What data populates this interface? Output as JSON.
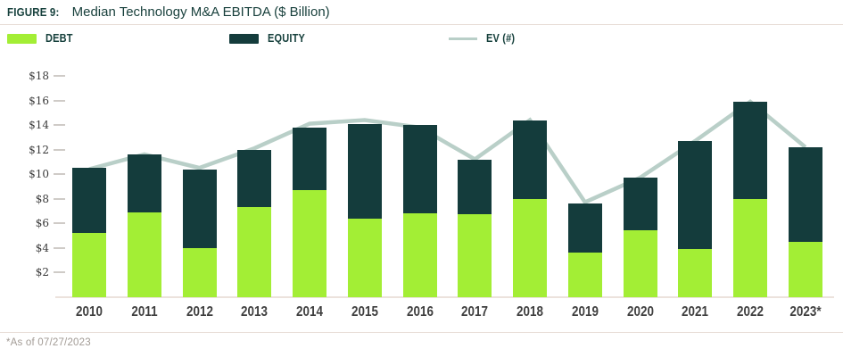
{
  "figure": {
    "label": "FIGURE 9:",
    "title": "Median Technology M&A EBITDA ($ Billion)",
    "footnote": "*As of 07/27/2023"
  },
  "legend": [
    {
      "label": "DEBT",
      "swatch": "box",
      "color": "#a3ee35"
    },
    {
      "label": "EQUITY",
      "swatch": "box",
      "color": "#143c3c"
    },
    {
      "label": "EV (#)",
      "swatch": "line",
      "color": "#b9cfc8"
    }
  ],
  "colors": {
    "debt": "#a3ee35",
    "equity": "#143c3c",
    "ev_line": "#b9cfc8",
    "axis_line": "#ece2dc",
    "tick_dash": "#cfcbc7"
  },
  "chart_data": {
    "type": "bar",
    "subtype": "stacked-bars-with-line-overlay",
    "title": "Median Technology M&A EBITDA ($ Billion)",
    "xlabel": "",
    "ylabel": "$ Billion",
    "ylim": [
      0,
      19
    ],
    "grid": false,
    "legend_position": "top",
    "categories": [
      "2010",
      "2011",
      "2012",
      "2013",
      "2014",
      "2015",
      "2016",
      "2017",
      "2018",
      "2019",
      "2020",
      "2021",
      "2022",
      "2023*"
    ],
    "series": [
      {
        "name": "DEBT",
        "type": "bar-stack",
        "color": "#a3ee35",
        "values": [
          5.2,
          6.9,
          4.0,
          7.3,
          8.7,
          6.4,
          6.8,
          6.7,
          8.0,
          3.6,
          5.4,
          3.9,
          8.0,
          4.5
        ]
      },
      {
        "name": "EQUITY",
        "type": "bar-stack",
        "color": "#143c3c",
        "values": [
          5.3,
          4.7,
          6.4,
          4.7,
          5.1,
          7.7,
          7.2,
          4.5,
          6.4,
          4.0,
          4.3,
          8.8,
          7.9,
          7.7
        ]
      },
      {
        "name": "EV (#)",
        "type": "line",
        "color": "#b9cfc8",
        "values": [
          10.4,
          11.6,
          10.5,
          12.1,
          14.1,
          14.4,
          13.8,
          11.2,
          14.4,
          7.7,
          9.7,
          12.7,
          15.9,
          12.2
        ]
      }
    ],
    "stack_totals": [
      10.5,
      11.6,
      10.4,
      12.0,
      13.8,
      14.1,
      14.0,
      11.2,
      14.4,
      7.6,
      9.7,
      12.7,
      15.9,
      12.2
    ],
    "y_ticks": [
      {
        "value": 2,
        "label": "$2"
      },
      {
        "value": 4,
        "label": "$4"
      },
      {
        "value": 6,
        "label": "$6"
      },
      {
        "value": 8,
        "label": "$8"
      },
      {
        "value": 10,
        "label": "$10"
      },
      {
        "value": 12,
        "label": "$12"
      },
      {
        "value": 14,
        "label": "$14"
      },
      {
        "value": 16,
        "label": "$16"
      },
      {
        "value": 18,
        "label": "$18"
      }
    ]
  }
}
